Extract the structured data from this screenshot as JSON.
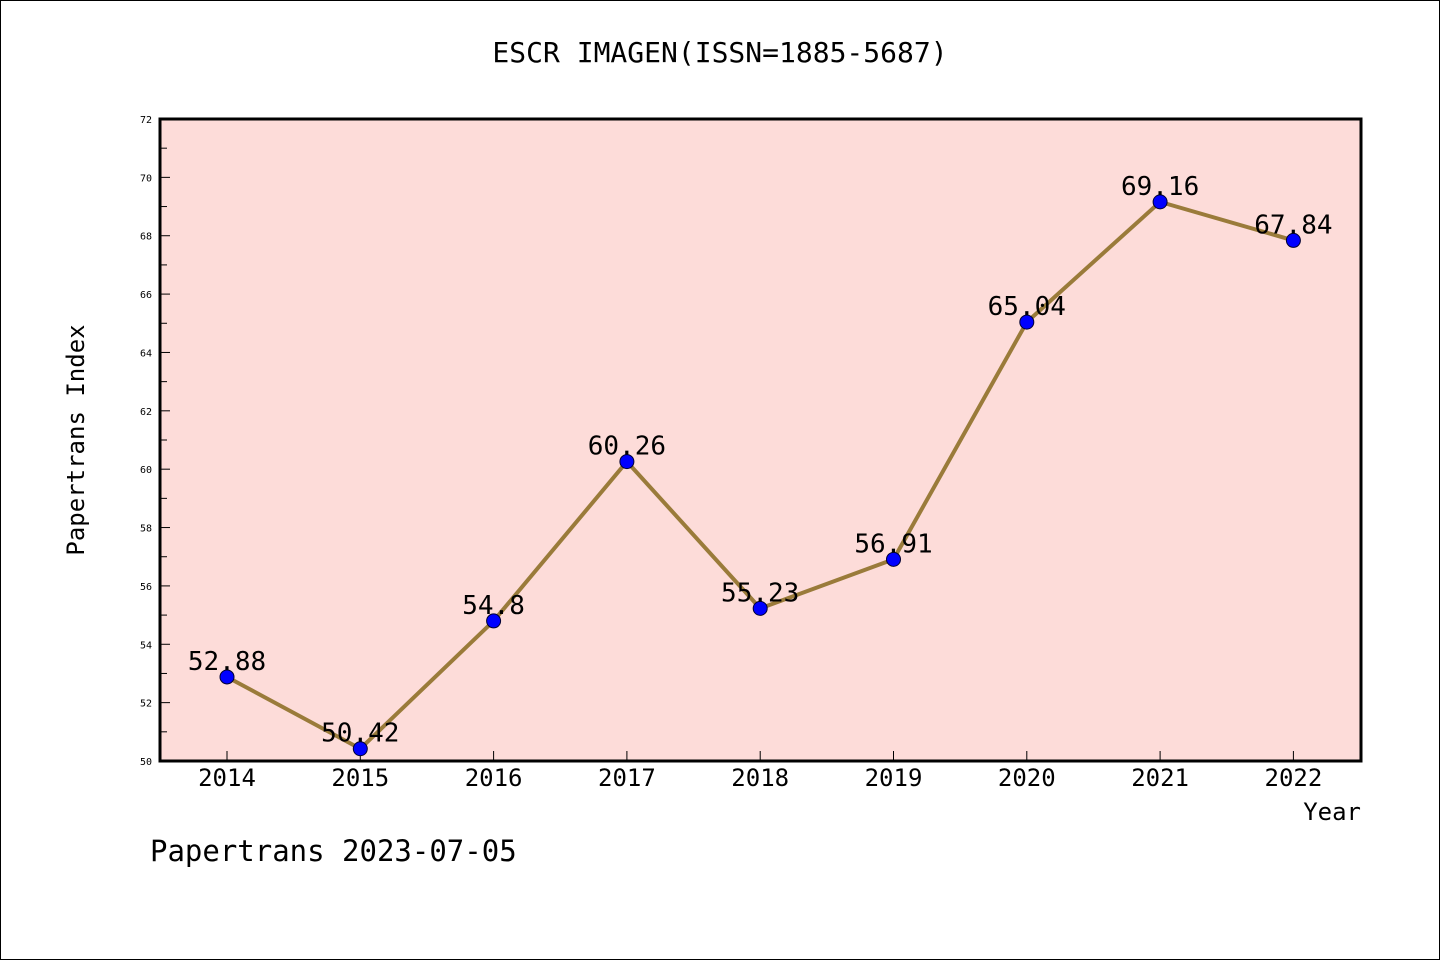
{
  "chart_data": {
    "type": "line",
    "title": "ESCR IMAGEN(ISSN=1885-5687)",
    "xlabel": "Year",
    "ylabel": "Papertrans Index",
    "categories": [
      "2014",
      "2015",
      "2016",
      "2017",
      "2018",
      "2019",
      "2020",
      "2021",
      "2022"
    ],
    "series": [
      {
        "values": [
          52.88,
          50.42,
          54.8,
          60.26,
          55.23,
          56.91,
          65.04,
          69.16,
          67.84
        ],
        "labels": [
          "52.88",
          "50.42",
          "54.8",
          "60.26",
          "55.23",
          "56.91",
          "65.04",
          "69.16",
          "67.84"
        ]
      }
    ],
    "ylim": [
      50,
      72
    ],
    "yticks": [
      "50",
      "52",
      "54",
      "56",
      "58",
      "60",
      "62",
      "64",
      "66",
      "68",
      "70",
      "72"
    ],
    "grid": false,
    "legend": "none",
    "colors": {
      "plot_background": "#fddcd9",
      "line": "#9a7b3a",
      "marker": "#0000ff",
      "axis": "#000000"
    }
  },
  "footer": "Papertrans 2023-07-05"
}
